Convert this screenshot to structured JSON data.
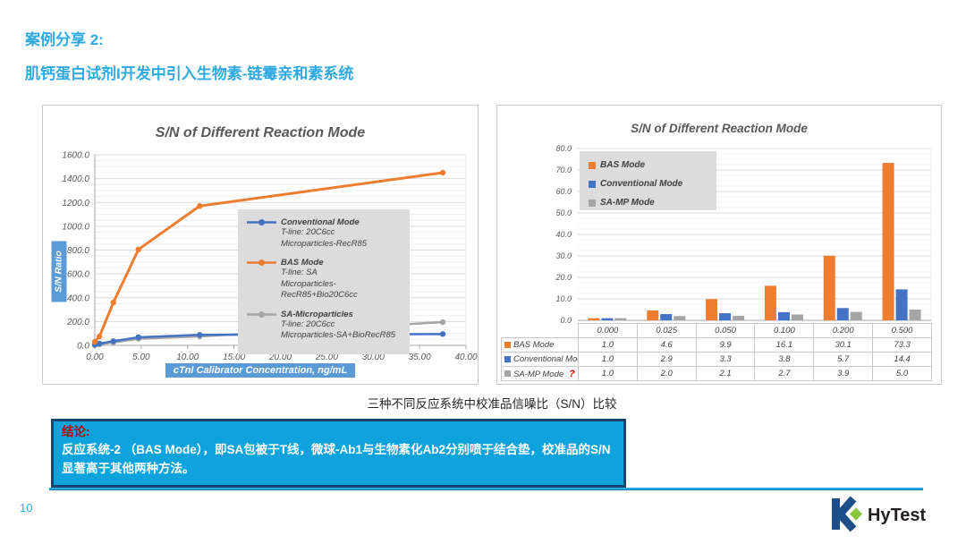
{
  "slide": {
    "title": "案例分享 2:",
    "subtitle": "肌钙蛋白试剂I开发中引入生物素-链霉亲和素系统",
    "caption": "三种不同反应系统中校准品信噪比（S/N）比较",
    "page_number": "10",
    "accent_color": "#2EA9E1"
  },
  "conclusion": {
    "heading": "结论:",
    "body": "反应系统-2 （BAS Mode），即SA包被于T线，微球-Ab1与生物素化Ab2分别喷于结合垫，校准品的S/N显著高于其他两种方法。",
    "bg_color": "#0FA3DE",
    "border_color": "#17456E",
    "heading_color": "#C00000",
    "text_color": "#FFFFFF"
  },
  "logo": {
    "text": "HyTest",
    "mark_color": "#1D4E89",
    "diamond_color": "#8CC63E",
    "text_color": "#231F20"
  },
  "chart_data": [
    {
      "type": "line",
      "title": "S/N of Different Reaction Mode",
      "xlabel": "cTnI Calibrator Concentration, ng/mL",
      "ylabel": "S/N Ratio",
      "xlim": [
        0,
        40
      ],
      "ylim": [
        0,
        1600
      ],
      "x_ticks": [
        "0.00",
        "5.00",
        "10.00",
        "15.00",
        "20.00",
        "25.00",
        "30.00",
        "35.00",
        "40.00"
      ],
      "y_ticks": [
        "0.0",
        "200.0",
        "400.0",
        "600.0",
        "800.0",
        "1000.0",
        "1200.0",
        "1400.0",
        "1600.0"
      ],
      "grid": true,
      "legend_position": "middle-right",
      "x": [
        0,
        0.5,
        2,
        4.7,
        11.3,
        37.5
      ],
      "series": [
        {
          "name": "Conventional Mode",
          "detail": [
            "T-line: 20C6cc",
            "Microparticles-RecR85"
          ],
          "color": "#4472C4",
          "values": [
            5,
            15,
            35,
            68,
            88,
            95
          ]
        },
        {
          "name": "BAS Mode",
          "detail": [
            "T-line:  SA",
            "Microparticles-RecR85+Bio20C6cc"
          ],
          "color": "#ED7D31",
          "values": [
            30,
            75,
            360,
            805,
            1170,
            1450
          ]
        },
        {
          "name": "SA-Microparticles",
          "detail": [
            "T-line: 20C6cc",
            "Microparticles-SA+BioRecR85"
          ],
          "color": "#A5A5A5",
          "values": [
            2,
            8,
            25,
            55,
            75,
            195
          ]
        }
      ]
    },
    {
      "type": "bar",
      "title": "S/N of Different Reaction Mode",
      "categories": [
        "0.000",
        "0.025",
        "0.050",
        "0.100",
        "0.200",
        "0.500"
      ],
      "ylim": [
        0,
        80
      ],
      "y_ticks": [
        "0.0",
        "10.0",
        "20.0",
        "30.0",
        "40.0",
        "50.0",
        "60.0",
        "70.0",
        "80.0"
      ],
      "grid": true,
      "legend_position": "top-left",
      "series": [
        {
          "name": "BAS Mode",
          "color": "#ED7D31",
          "values": [
            1.0,
            4.6,
            9.9,
            16.1,
            30.1,
            73.3
          ],
          "annotation": ""
        },
        {
          "name": "Conventional Mode",
          "color": "#4472C4",
          "values": [
            1.0,
            2.9,
            3.3,
            3.8,
            5.7,
            14.4
          ],
          "annotation": ""
        },
        {
          "name": "SA-MP Mode",
          "color": "#A5A5A5",
          "values": [
            1.0,
            2.0,
            2.1,
            2.7,
            3.9,
            5.0
          ],
          "annotation": "?"
        }
      ]
    }
  ]
}
